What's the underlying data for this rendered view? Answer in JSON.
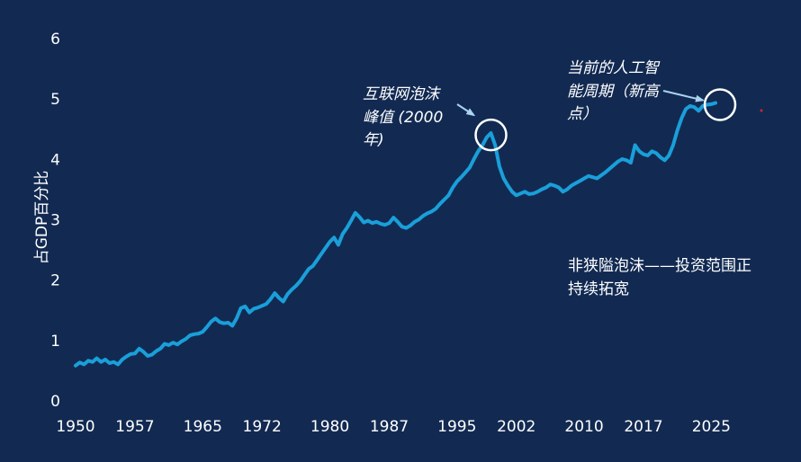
{
  "chart_data": {
    "type": "line",
    "title": "",
    "xlabel": "",
    "ylabel": "占GDP百分比",
    "xlim": [
      1950,
      2029
    ],
    "ylim": [
      0,
      6
    ],
    "x_ticks": [
      "1950",
      "1957",
      "1965",
      "1972",
      "1980",
      "1987",
      "1995",
      "2002",
      "2010",
      "2017",
      "2025"
    ],
    "y_ticks": [
      "0",
      "1",
      "2",
      "3",
      "4",
      "5",
      "6"
    ],
    "grid": false,
    "legend": "none",
    "line_color": "#1a9fd9",
    "circle_color": "#ffffff",
    "marker_color": "#d0243a",
    "series": [
      {
        "x": [
          1950.0,
          1950.5,
          1951.0,
          1951.5,
          1952.0,
          1952.5,
          1953.0,
          1953.5,
          1954.0,
          1954.5,
          1955.0,
          1955.5,
          1956.0,
          1956.5,
          1957.0,
          1957.5,
          1958.0,
          1958.5,
          1959.0,
          1959.5,
          1960.0,
          1960.5,
          1961.0,
          1961.5,
          1962.0,
          1962.5,
          1963.0,
          1963.5,
          1964.0,
          1964.5,
          1965.0,
          1965.5,
          1966.0,
          1966.5,
          1967.0,
          1967.5,
          1968.0,
          1968.5,
          1969.0,
          1969.5,
          1970.0,
          1970.5,
          1971.0,
          1971.5,
          1972.0,
          1972.5,
          1973.0,
          1973.5,
          1974.0,
          1974.5,
          1975.0,
          1975.5,
          1976.0,
          1976.5,
          1977.0,
          1977.5,
          1978.0,
          1978.5,
          1979.0,
          1979.5,
          1980.0,
          1980.5,
          1981.0,
          1981.5,
          1982.0,
          1982.5,
          1983.0,
          1983.5,
          1984.0,
          1984.5,
          1985.0,
          1985.5,
          1986.0,
          1986.5,
          1987.0,
          1987.5,
          1988.0,
          1988.5,
          1989.0,
          1989.5,
          1990.0,
          1990.5,
          1991.0,
          1991.5,
          1992.0,
          1992.5,
          1993.0,
          1993.5,
          1994.0,
          1994.5,
          1995.0,
          1995.5,
          1996.0,
          1996.5,
          1997.0,
          1997.5,
          1998.0,
          1998.5,
          1999.0,
          1999.5,
          2000.0,
          2000.5,
          2001.0,
          2001.5,
          2002.0,
          2002.5,
          2003.0,
          2003.5,
          2004.0,
          2004.5,
          2005.0,
          2005.5,
          2006.0,
          2006.5,
          2007.0,
          2007.5,
          2008.0,
          2008.5,
          2009.0,
          2009.5,
          2010.0,
          2010.5,
          2011.0,
          2011.5,
          2012.0,
          2012.5,
          2013.0,
          2013.5,
          2014.0,
          2014.5,
          2015.0,
          2015.5,
          2016.0,
          2016.5,
          2017.0,
          2017.5,
          2018.0,
          2018.5,
          2019.0,
          2019.5,
          2020.0,
          2020.5,
          2021.0,
          2021.5,
          2022.0,
          2022.5,
          2023.0,
          2023.5,
          2024.0,
          2024.5,
          2025.0,
          2025.5
        ],
        "y": [
          0.6,
          0.65,
          0.62,
          0.68,
          0.66,
          0.72,
          0.66,
          0.7,
          0.64,
          0.66,
          0.62,
          0.7,
          0.75,
          0.79,
          0.8,
          0.88,
          0.83,
          0.76,
          0.78,
          0.84,
          0.88,
          0.96,
          0.94,
          0.98,
          0.95,
          1.0,
          1.04,
          1.1,
          1.12,
          1.13,
          1.16,
          1.24,
          1.33,
          1.38,
          1.32,
          1.3,
          1.31,
          1.26,
          1.38,
          1.55,
          1.58,
          1.48,
          1.54,
          1.56,
          1.59,
          1.62,
          1.7,
          1.8,
          1.72,
          1.66,
          1.78,
          1.86,
          1.92,
          2.0,
          2.1,
          2.2,
          2.25,
          2.35,
          2.45,
          2.55,
          2.65,
          2.72,
          2.6,
          2.78,
          2.88,
          3.0,
          3.13,
          3.06,
          2.97,
          3.0,
          2.96,
          2.98,
          2.95,
          2.93,
          2.96,
          3.05,
          2.98,
          2.9,
          2.88,
          2.92,
          2.98,
          3.02,
          3.08,
          3.12,
          3.15,
          3.2,
          3.28,
          3.35,
          3.42,
          3.55,
          3.65,
          3.72,
          3.8,
          3.88,
          4.02,
          4.15,
          4.25,
          4.38,
          4.45,
          4.25,
          3.9,
          3.7,
          3.58,
          3.48,
          3.42,
          3.45,
          3.48,
          3.44,
          3.45,
          3.48,
          3.52,
          3.55,
          3.6,
          3.58,
          3.55,
          3.48,
          3.52,
          3.58,
          3.62,
          3.66,
          3.7,
          3.74,
          3.72,
          3.7,
          3.75,
          3.8,
          3.86,
          3.92,
          3.98,
          4.02,
          4.0,
          3.96,
          4.25,
          4.15,
          4.1,
          4.08,
          4.15,
          4.12,
          4.05,
          4.0,
          4.08,
          4.25,
          4.5,
          4.7,
          4.85,
          4.9,
          4.88,
          4.82,
          4.9,
          4.92,
          4.93,
          4.95
        ]
      }
    ],
    "annotations": {
      "dotcom_peak": "互联网泡沫\n峰值 (2000\n年)",
      "ai_cycle": "当前的人工智\n能周期（新高\n点）",
      "non_bubble": "非狭隘泡沫——投资范围正\n持续拓宽"
    }
  }
}
